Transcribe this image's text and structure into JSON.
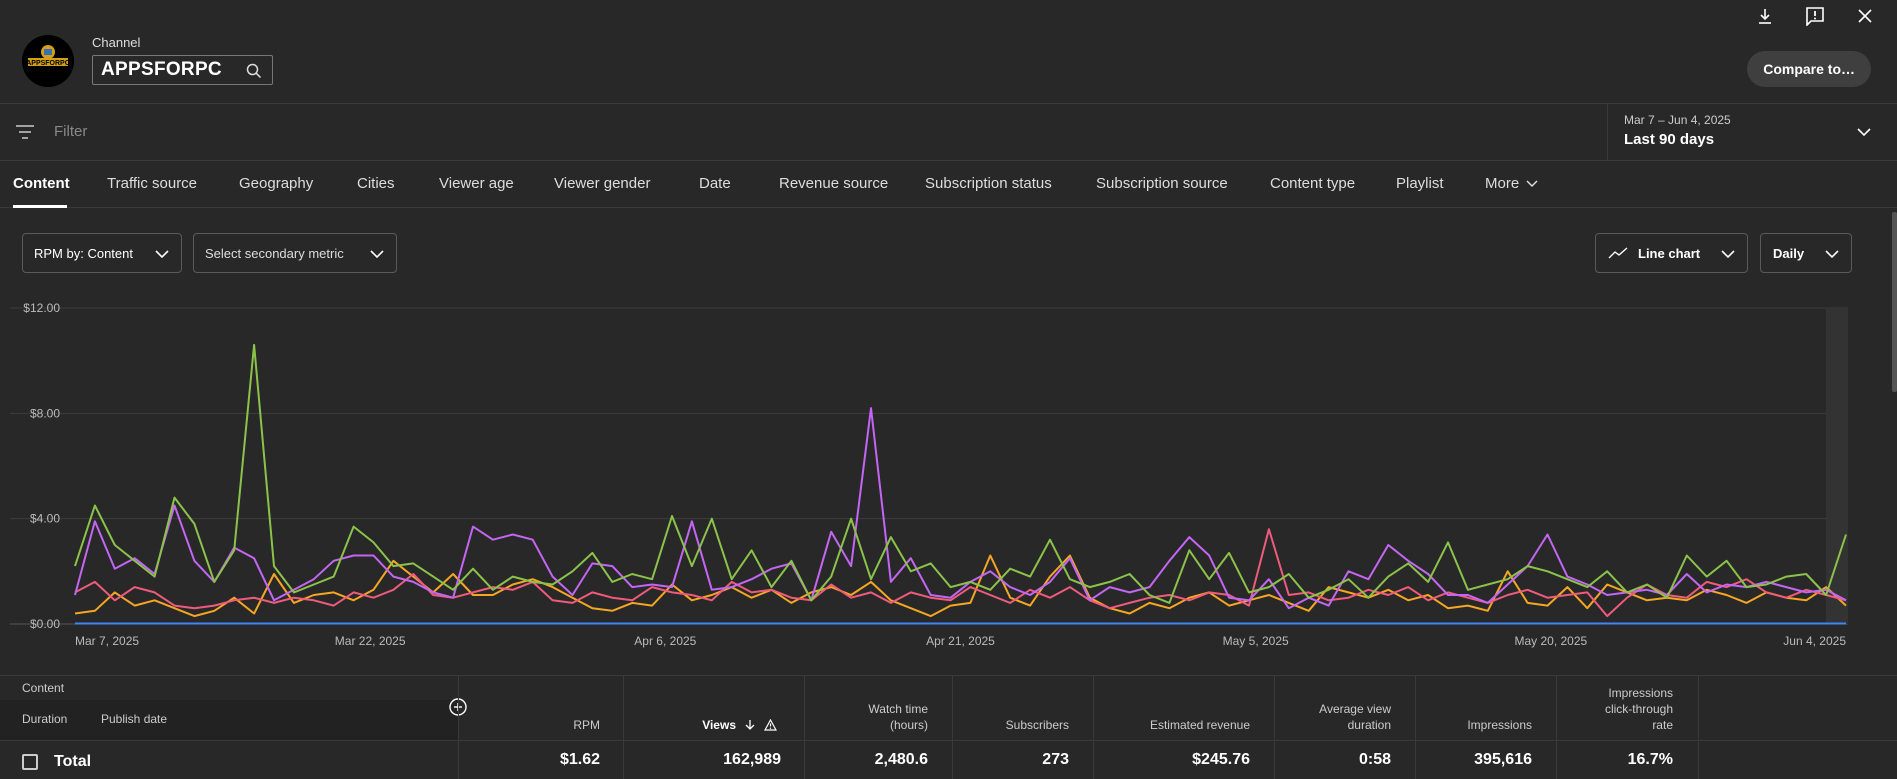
{
  "header": {
    "channel_label": "Channel",
    "channel_name": "APPSFORPC",
    "avatar_text": "APPSFORPC",
    "compare_label": "Compare to…"
  },
  "filter": {
    "placeholder": "Filter",
    "date_range": "Mar 7 – Jun 4, 2025",
    "period": "Last 90 days"
  },
  "tabs": [
    "Content",
    "Traffic source",
    "Geography",
    "Cities",
    "Viewer age",
    "Viewer gender",
    "Date",
    "Revenue source",
    "Subscription status",
    "Subscription source",
    "Content type",
    "Playlist",
    "More"
  ],
  "controls": {
    "primary_metric": "RPM by: Content",
    "secondary_metric": "Select secondary metric",
    "chart_type": "Line chart",
    "granularity": "Daily"
  },
  "chart_data": {
    "type": "line",
    "x_start": "2025-03-07",
    "x_end": "2025-06-04",
    "x_ticks": [
      "Mar 7, 2025",
      "Mar 22, 2025",
      "Apr 6, 2025",
      "Apr 21, 2025",
      "May 5, 2025",
      "May 20, 2025",
      "Jun 4, 2025"
    ],
    "y_ticks": [
      "$0.00",
      "$4.00",
      "$8.00",
      "$12.00"
    ],
    "ylim": [
      0,
      12
    ],
    "grid": true,
    "colors": [
      "#8bc34a",
      "#c366f4",
      "#ef5b7c",
      "#f5a623",
      "#4285f4"
    ],
    "series": [
      {
        "color": "#8bc34a",
        "values": [
          2.2,
          4.5,
          3.0,
          2.4,
          1.8,
          4.8,
          3.8,
          1.6,
          2.8,
          10.6,
          2.2,
          1.2,
          1.5,
          1.8,
          3.7,
          3.1,
          2.2,
          2.3,
          1.8,
          1.3,
          2.1,
          1.3,
          1.8,
          1.6,
          1.5,
          2.0,
          2.7,
          1.6,
          1.9,
          1.7,
          4.1,
          2.2,
          4.0,
          1.7,
          2.8,
          1.4,
          2.4,
          0.9,
          1.8,
          4.0,
          1.7,
          3.3,
          2.0,
          2.3,
          1.4,
          1.6,
          1.3,
          2.1,
          1.8,
          3.2,
          1.7,
          1.4,
          1.6,
          1.9,
          1.1,
          0.8,
          2.8,
          1.7,
          2.7,
          1.2,
          1.4,
          1.9,
          1.0,
          1.3,
          1.7,
          1.0,
          1.8,
          2.3,
          1.6,
          3.1,
          1.3,
          1.5,
          1.7,
          2.2,
          2.0,
          1.7,
          1.4,
          2.0,
          1.2,
          1.5,
          1.0,
          2.6,
          1.8,
          2.4,
          1.4,
          1.5,
          1.8,
          1.9,
          1.1,
          3.4
        ]
      },
      {
        "color": "#c366f4",
        "values": [
          1.1,
          3.9,
          2.1,
          2.5,
          1.9,
          4.5,
          2.4,
          1.6,
          2.9,
          2.5,
          0.9,
          1.3,
          1.7,
          2.4,
          2.6,
          2.6,
          1.8,
          1.6,
          1.2,
          1.0,
          3.7,
          3.2,
          3.4,
          3.2,
          1.8,
          1.1,
          2.3,
          2.2,
          1.4,
          1.5,
          1.4,
          3.9,
          1.3,
          1.4,
          1.7,
          2.1,
          2.3,
          0.9,
          3.5,
          2.2,
          8.2,
          1.6,
          2.5,
          1.1,
          1.0,
          1.6,
          2.0,
          1.4,
          1.1,
          1.6,
          2.5,
          0.9,
          1.4,
          1.2,
          1.4,
          2.4,
          3.3,
          2.6,
          1.0,
          0.9,
          1.7,
          0.6,
          1.0,
          0.7,
          2.0,
          1.7,
          3.0,
          2.4,
          1.9,
          1.1,
          1.1,
          0.8,
          1.5,
          2.2,
          3.4,
          1.8,
          1.5,
          1.1,
          1.2,
          1.3,
          1.1,
          1.9,
          1.2,
          1.5,
          1.4,
          1.6,
          1.4,
          1.2,
          1.3,
          0.9
        ]
      },
      {
        "color": "#ef5b7c",
        "values": [
          1.2,
          1.6,
          0.9,
          1.4,
          1.2,
          0.7,
          0.6,
          0.7,
          0.9,
          1.0,
          0.8,
          1.0,
          0.9,
          0.7,
          1.2,
          1.0,
          1.3,
          1.9,
          1.1,
          1.0,
          1.2,
          1.4,
          1.3,
          1.6,
          0.9,
          0.8,
          1.2,
          1.0,
          0.9,
          1.4,
          1.2,
          1.1,
          0.9,
          1.6,
          1.2,
          1.3,
          1.0,
          0.9,
          1.5,
          1.0,
          1.2,
          0.8,
          1.2,
          1.0,
          0.9,
          1.4,
          1.1,
          0.8,
          1.3,
          1.0,
          1.4,
          0.9,
          0.6,
          0.8,
          1.0,
          1.1,
          0.9,
          1.2,
          1.1,
          0.7,
          3.6,
          1.1,
          1.2,
          0.9,
          1.0,
          1.3,
          1.1,
          1.4,
          0.9,
          1.2,
          1.0,
          0.8,
          1.1,
          1.3,
          1.0,
          1.1,
          1.2,
          0.3,
          1.0,
          1.5,
          1.1,
          1.0,
          1.6,
          1.4,
          1.7,
          1.2,
          1.0,
          1.3,
          1.1,
          0.9
        ]
      },
      {
        "color": "#f5a623",
        "values": [
          0.4,
          0.5,
          1.2,
          0.7,
          0.9,
          0.6,
          0.3,
          0.5,
          1.0,
          0.4,
          1.9,
          0.8,
          1.1,
          1.2,
          0.9,
          1.3,
          2.4,
          1.8,
          1.2,
          1.9,
          1.1,
          1.1,
          1.5,
          1.7,
          1.4,
          1.0,
          0.6,
          0.5,
          0.8,
          0.7,
          1.5,
          0.9,
          1.1,
          1.4,
          1.0,
          1.3,
          0.8,
          1.2,
          1.4,
          1.1,
          1.6,
          0.9,
          0.6,
          0.3,
          0.7,
          0.8,
          2.6,
          1.0,
          0.7,
          1.8,
          2.6,
          1.0,
          0.6,
          0.4,
          0.8,
          0.6,
          1.0,
          1.2,
          0.7,
          0.9,
          1.1,
          0.8,
          0.5,
          1.4,
          1.2,
          1.0,
          1.3,
          0.9,
          1.1,
          0.6,
          0.7,
          0.5,
          2.0,
          0.8,
          0.7,
          1.4,
          0.6,
          1.5,
          1.2,
          0.9,
          1.0,
          0.9,
          1.3,
          1.1,
          0.8,
          1.2,
          1.0,
          0.9,
          1.4,
          0.7
        ]
      },
      {
        "color": "#4285f4",
        "values": [
          0.02,
          0.02,
          0.02,
          0.02,
          0.02,
          0.02,
          0.02,
          0.02,
          0.02,
          0.02,
          0.02,
          0.02,
          0.02,
          0.02,
          0.02,
          0.02,
          0.02,
          0.02,
          0.02,
          0.02,
          0.02,
          0.02,
          0.02,
          0.02,
          0.02,
          0.02,
          0.02,
          0.02,
          0.02,
          0.02,
          0.02,
          0.02,
          0.02,
          0.02,
          0.02,
          0.02,
          0.02,
          0.02,
          0.02,
          0.02,
          0.02,
          0.02,
          0.02,
          0.02,
          0.02,
          0.02,
          0.02,
          0.02,
          0.02,
          0.02,
          0.02,
          0.02,
          0.02,
          0.02,
          0.02,
          0.02,
          0.02,
          0.02,
          0.02,
          0.02,
          0.02,
          0.02,
          0.02,
          0.02,
          0.02,
          0.02,
          0.02,
          0.02,
          0.02,
          0.02,
          0.02,
          0.02,
          0.02,
          0.02,
          0.02,
          0.02,
          0.02,
          0.02,
          0.02,
          0.02,
          0.02,
          0.02,
          0.02,
          0.02,
          0.02,
          0.02,
          0.02,
          0.02,
          0.02,
          0.02
        ]
      }
    ]
  },
  "table": {
    "group_label": "Content",
    "sub_cols": [
      "Duration",
      "Publish date"
    ],
    "columns": {
      "rpm": "RPM",
      "views": "Views",
      "watch_time": [
        "Watch time",
        "(hours)"
      ],
      "subscribers": "Subscribers",
      "revenue": "Estimated revenue",
      "avd": [
        "Average view",
        "duration"
      ],
      "impressions": "Impressions",
      "ctr": [
        "Impressions",
        "click-through",
        "rate"
      ]
    },
    "total": {
      "label": "Total",
      "rpm": "$1.62",
      "views": "162,989",
      "watch_time": "2,480.6",
      "subscribers": "273",
      "revenue": "$245.76",
      "avd": "0:58",
      "impressions": "395,616",
      "ctr": "16.7%"
    }
  }
}
